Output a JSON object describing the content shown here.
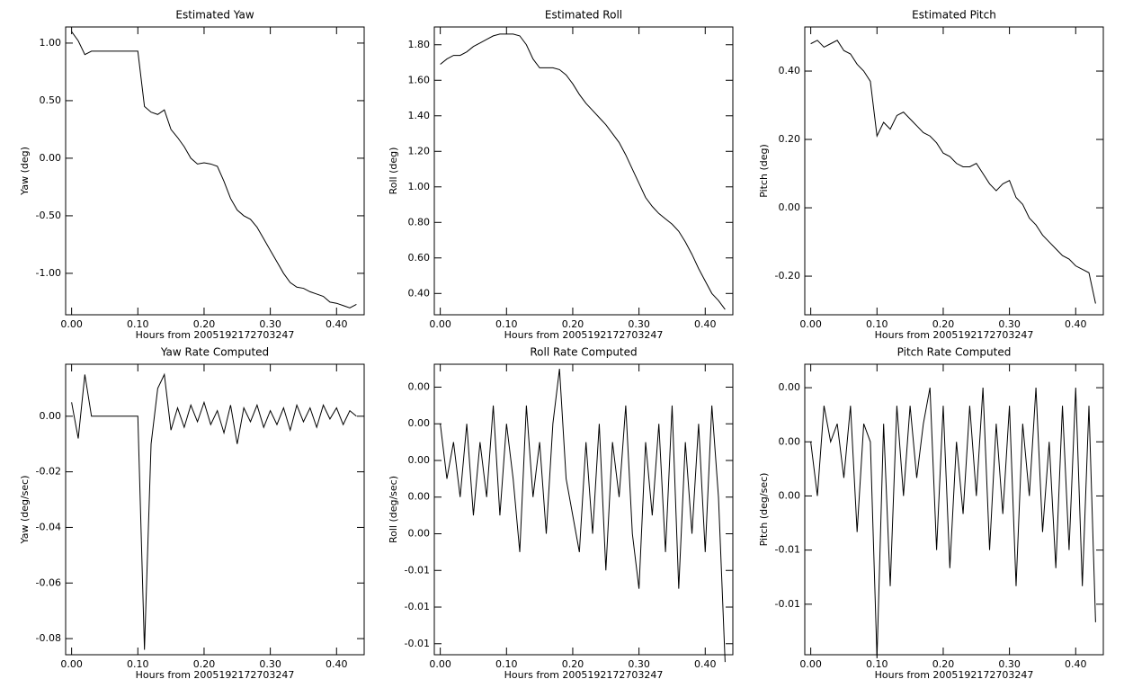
{
  "chart_data": [
    {
      "type": "line",
      "title": "Estimated Yaw",
      "x_label": "Hours from 2005192172703247",
      "y_label": "Yaw (deg)",
      "x": [
        0,
        0.01,
        0.02,
        0.03,
        0.04,
        0.05,
        0.06,
        0.07,
        0.08,
        0.09,
        0.1,
        0.11,
        0.12,
        0.13,
        0.14,
        0.15,
        0.16,
        0.17,
        0.18,
        0.19,
        0.2,
        0.21,
        0.22,
        0.23,
        0.24,
        0.25,
        0.26,
        0.27,
        0.28,
        0.29,
        0.3,
        0.31,
        0.32,
        0.33,
        0.34,
        0.35,
        0.36,
        0.37,
        0.38,
        0.39,
        0.4,
        0.41,
        0.42,
        0.43
      ],
      "values": [
        1.1,
        1.02,
        0.9,
        0.93,
        0.93,
        0.93,
        0.93,
        0.93,
        0.93,
        0.93,
        0.93,
        0.45,
        0.4,
        0.38,
        0.42,
        0.25,
        0.18,
        0.1,
        0.0,
        -0.05,
        -0.04,
        -0.05,
        -0.07,
        -0.2,
        -0.35,
        -0.45,
        -0.5,
        -0.53,
        -0.6,
        -0.7,
        -0.8,
        -0.9,
        -1.0,
        -1.08,
        -1.12,
        -1.13,
        -1.16,
        -1.18,
        -1.2,
        -1.25,
        -1.26,
        -1.28,
        -1.3,
        -1.27
      ],
      "color": "#000000",
      "xlim": [
        -0.009,
        0.4417
      ],
      "ylim": [
        -1.36,
        1.14
      ],
      "xticks": [
        {
          "value": 0,
          "label": "0.00"
        },
        {
          "value": 0.1,
          "label": "0.10"
        },
        {
          "value": 0.2,
          "label": "0.20"
        },
        {
          "value": 0.3,
          "label": "0.30"
        },
        {
          "value": 0.4,
          "label": "0.40"
        }
      ],
      "yticks": [
        {
          "value": 1,
          "label": "1.00"
        },
        {
          "value": 0.5,
          "label": "0.50"
        },
        {
          "value": 0,
          "label": "0.00"
        },
        {
          "value": -0.5,
          "label": "-0.50"
        },
        {
          "value": -1,
          "label": "-1.00"
        }
      ]
    },
    {
      "type": "line",
      "title": "Estimated Roll",
      "x_label": "Hours from 2005192172703247",
      "y_label": "Roll (deg)",
      "x": [
        0,
        0.01,
        0.02,
        0.03,
        0.04,
        0.05,
        0.06,
        0.07,
        0.08,
        0.09,
        0.1,
        0.11,
        0.12,
        0.13,
        0.14,
        0.15,
        0.16,
        0.17,
        0.18,
        0.19,
        0.2,
        0.21,
        0.22,
        0.23,
        0.24,
        0.25,
        0.26,
        0.27,
        0.28,
        0.29,
        0.3,
        0.31,
        0.32,
        0.33,
        0.34,
        0.35,
        0.36,
        0.37,
        0.38,
        0.39,
        0.4,
        0.41,
        0.42,
        0.43
      ],
      "values": [
        1.69,
        1.72,
        1.74,
        1.74,
        1.76,
        1.79,
        1.81,
        1.83,
        1.85,
        1.86,
        1.86,
        1.86,
        1.85,
        1.8,
        1.72,
        1.67,
        1.67,
        1.67,
        1.66,
        1.63,
        1.58,
        1.52,
        1.47,
        1.43,
        1.39,
        1.35,
        1.3,
        1.25,
        1.18,
        1.1,
        1.02,
        0.94,
        0.89,
        0.85,
        0.82,
        0.79,
        0.75,
        0.69,
        0.62,
        0.54,
        0.47,
        0.4,
        0.36,
        0.31
      ],
      "color": "#000000",
      "xlim": [
        -0.009,
        0.4417
      ],
      "ylim": [
        0.28,
        1.9
      ],
      "xticks": [
        {
          "value": 0,
          "label": "0.00"
        },
        {
          "value": 0.1,
          "label": "0.10"
        },
        {
          "value": 0.2,
          "label": "0.20"
        },
        {
          "value": 0.3,
          "label": "0.30"
        },
        {
          "value": 0.4,
          "label": "0.40"
        }
      ],
      "yticks": [
        {
          "value": 1.8,
          "label": "1.80"
        },
        {
          "value": 1.6,
          "label": "1.60"
        },
        {
          "value": 1.4,
          "label": "1.40"
        },
        {
          "value": 1.2,
          "label": "1.20"
        },
        {
          "value": 1,
          "label": "1.00"
        },
        {
          "value": 0.8,
          "label": "0.80"
        },
        {
          "value": 0.6,
          "label": "0.60"
        },
        {
          "value": 0.4,
          "label": "0.40"
        }
      ]
    },
    {
      "type": "line",
      "title": "Estimated Pitch",
      "x_label": "Hours from 2005192172703247",
      "y_label": "Pitch (deg)",
      "x": [
        0,
        0.01,
        0.02,
        0.03,
        0.04,
        0.05,
        0.06,
        0.07,
        0.08,
        0.09,
        0.1,
        0.11,
        0.12,
        0.13,
        0.14,
        0.15,
        0.16,
        0.17,
        0.18,
        0.19,
        0.2,
        0.21,
        0.22,
        0.23,
        0.24,
        0.25,
        0.26,
        0.27,
        0.28,
        0.29,
        0.3,
        0.31,
        0.32,
        0.33,
        0.34,
        0.35,
        0.36,
        0.37,
        0.38,
        0.39,
        0.4,
        0.41,
        0.42,
        0.43
      ],
      "values": [
        0.48,
        0.49,
        0.47,
        0.48,
        0.49,
        0.46,
        0.45,
        0.42,
        0.4,
        0.37,
        0.21,
        0.25,
        0.23,
        0.27,
        0.28,
        0.26,
        0.24,
        0.22,
        0.21,
        0.19,
        0.16,
        0.15,
        0.13,
        0.12,
        0.12,
        0.13,
        0.1,
        0.07,
        0.05,
        0.07,
        0.08,
        0.03,
        0.01,
        -0.03,
        -0.05,
        -0.08,
        -0.1,
        -0.12,
        -0.14,
        -0.15,
        -0.17,
        -0.18,
        -0.19,
        -0.28
      ],
      "color": "#000000",
      "xlim": [
        -0.009,
        0.4417
      ],
      "ylim": [
        -0.313,
        0.529
      ],
      "xticks": [
        {
          "value": 0,
          "label": "0.00"
        },
        {
          "value": 0.1,
          "label": "0.10"
        },
        {
          "value": 0.2,
          "label": "0.20"
        },
        {
          "value": 0.3,
          "label": "0.30"
        },
        {
          "value": 0.4,
          "label": "0.40"
        }
      ],
      "yticks": [
        {
          "value": 0.4,
          "label": "0.40"
        },
        {
          "value": 0.2,
          "label": "0.20"
        },
        {
          "value": 0,
          "label": "0.00"
        },
        {
          "value": -0.2,
          "label": "-0.20"
        }
      ]
    },
    {
      "type": "line",
      "title": "Yaw Rate Computed",
      "x_label": "Hours from 2005192172703247",
      "y_label": "Yaw (deg/sec)",
      "x": [
        0,
        0.01,
        0.02,
        0.03,
        0.04,
        0.05,
        0.06,
        0.07,
        0.08,
        0.09,
        0.1,
        0.11,
        0.12,
        0.13,
        0.14,
        0.15,
        0.16,
        0.17,
        0.18,
        0.19,
        0.2,
        0.21,
        0.22,
        0.23,
        0.24,
        0.25,
        0.26,
        0.27,
        0.28,
        0.29,
        0.3,
        0.31,
        0.32,
        0.33,
        0.34,
        0.35,
        0.36,
        0.37,
        0.38,
        0.39,
        0.4,
        0.41,
        0.42,
        0.43
      ],
      "values": [
        0.005,
        -0.008,
        0.015,
        0,
        0,
        0,
        0,
        0,
        0,
        0,
        0,
        -0.084,
        -0.01,
        0.01,
        0.015,
        -0.005,
        0.003,
        -0.004,
        0.004,
        -0.002,
        0.005,
        -0.003,
        0.002,
        -0.006,
        0.004,
        -0.01,
        0.003,
        -0.002,
        0.004,
        -0.004,
        0.002,
        -0.003,
        0.003,
        -0.005,
        0.004,
        -0.002,
        0.003,
        -0.004,
        0.004,
        -0.001,
        0.003,
        -0.003,
        0.002,
        0
      ],
      "color": "#000000",
      "xlim": [
        -0.009,
        0.4417
      ],
      "ylim": [
        -0.0858,
        0.0187
      ],
      "xticks": [
        {
          "value": 0,
          "label": "0.00"
        },
        {
          "value": 0.1,
          "label": "0.10"
        },
        {
          "value": 0.2,
          "label": "0.20"
        },
        {
          "value": 0.3,
          "label": "0.30"
        },
        {
          "value": 0.4,
          "label": "0.40"
        }
      ],
      "yticks": [
        {
          "value": 0,
          "label": "0.00"
        },
        {
          "value": -0.02,
          "label": "-0.02"
        },
        {
          "value": -0.04,
          "label": "-0.04"
        },
        {
          "value": -0.06,
          "label": "-0.06"
        },
        {
          "value": -0.08,
          "label": "-0.08"
        }
      ]
    },
    {
      "type": "line",
      "title": "Roll Rate Computed",
      "x_label": "Hours from 2005192172703247",
      "y_label": "Roll (deg/sec)",
      "x": [
        0,
        0.01,
        0.02,
        0.03,
        0.04,
        0.05,
        0.06,
        0.07,
        0.08,
        0.09,
        0.1,
        0.11,
        0.12,
        0.13,
        0.14,
        0.15,
        0.16,
        0.17,
        0.18,
        0.19,
        0.2,
        0.21,
        0.22,
        0.23,
        0.24,
        0.25,
        0.26,
        0.27,
        0.28,
        0.29,
        0.3,
        0.31,
        0.32,
        0.33,
        0.34,
        0.35,
        0.36,
        0.37,
        0.38,
        0.39,
        0.4,
        0.41,
        0.42,
        0.43
      ],
      "values": [
        0.002,
        -0.001,
        0.001,
        -0.002,
        0.002,
        -0.003,
        0.001,
        -0.002,
        0.003,
        -0.003,
        0.002,
        -0.001,
        -0.005,
        0.003,
        -0.002,
        0.001,
        -0.004,
        0.002,
        0.005,
        -0.001,
        -0.003,
        -0.005,
        0.001,
        -0.004,
        0.002,
        -0.006,
        0.001,
        -0.002,
        0.003,
        -0.004,
        -0.007,
        0.001,
        -0.003,
        0.002,
        -0.005,
        0.003,
        -0.007,
        0.001,
        -0.004,
        0.002,
        -0.005,
        0.003,
        -0.002,
        -0.011
      ],
      "color": "#000000",
      "xlim": [
        -0.009,
        0.4417
      ],
      "ylim": [
        -0.0106,
        0.00525
      ],
      "xticks": [
        {
          "value": 0,
          "label": "0.00"
        },
        {
          "value": 0.1,
          "label": "0.10"
        },
        {
          "value": 0.2,
          "label": "0.20"
        },
        {
          "value": 0.3,
          "label": "0.30"
        },
        {
          "value": 0.4,
          "label": "0.40"
        }
      ],
      "yticks": [
        {
          "value": 0.004,
          "label": "0.00"
        },
        {
          "value": 0.002,
          "label": "0.00"
        },
        {
          "value": 0,
          "label": "0.00"
        },
        {
          "value": -0.002,
          "label": "0.00"
        },
        {
          "value": -0.004,
          "label": "0.00"
        },
        {
          "value": -0.006,
          "label": "-0.01"
        },
        {
          "value": -0.008,
          "label": "-0.01"
        },
        {
          "value": -0.01,
          "label": "-0.01"
        }
      ]
    },
    {
      "type": "line",
      "title": "Pitch Rate Computed",
      "x_label": "Hours from 2005192172703247",
      "y_label": "Pitch (deg/sec)",
      "x": [
        0,
        0.01,
        0.02,
        0.03,
        0.04,
        0.05,
        0.06,
        0.07,
        0.08,
        0.09,
        0.1,
        0.11,
        0.12,
        0.13,
        0.14,
        0.15,
        0.16,
        0.17,
        0.18,
        0.19,
        0.2,
        0.21,
        0.22,
        0.23,
        0.24,
        0.25,
        0.26,
        0.27,
        0.28,
        0.29,
        0.3,
        0.31,
        0.32,
        0.33,
        0.34,
        0.35,
        0.36,
        0.37,
        0.38,
        0.39,
        0.4,
        0.41,
        0.42,
        0.43
      ],
      "values": [
        0.001,
        -0.002,
        0.003,
        0.001,
        0.002,
        -0.001,
        0.003,
        -0.004,
        0.002,
        0.001,
        -0.011,
        0.002,
        -0.007,
        0.003,
        -0.002,
        0.003,
        -0.001,
        0.002,
        0.004,
        -0.005,
        0.003,
        -0.006,
        0.001,
        -0.003,
        0.003,
        -0.002,
        0.004,
        -0.005,
        0.002,
        -0.003,
        0.003,
        -0.007,
        0.002,
        -0.002,
        0.004,
        -0.004,
        0.001,
        -0.006,
        0.003,
        -0.005,
        0.004,
        -0.007,
        0.003,
        -0.009
      ],
      "color": "#000000",
      "xlim": [
        -0.009,
        0.4417
      ],
      "ylim": [
        -0.0108,
        0.0053
      ],
      "xticks": [
        {
          "value": 0,
          "label": "0.00"
        },
        {
          "value": 0.1,
          "label": "0.10"
        },
        {
          "value": 0.2,
          "label": "0.20"
        },
        {
          "value": 0.3,
          "label": "0.30"
        },
        {
          "value": 0.4,
          "label": "0.40"
        }
      ],
      "yticks": [
        {
          "value": 0.004,
          "label": "0.00"
        },
        {
          "value": 0.001,
          "label": "0.00"
        },
        {
          "value": -0.002,
          "label": "0.00"
        },
        {
          "value": -0.005,
          "label": "-0.01"
        },
        {
          "value": -0.008,
          "label": "-0.01"
        }
      ]
    }
  ]
}
